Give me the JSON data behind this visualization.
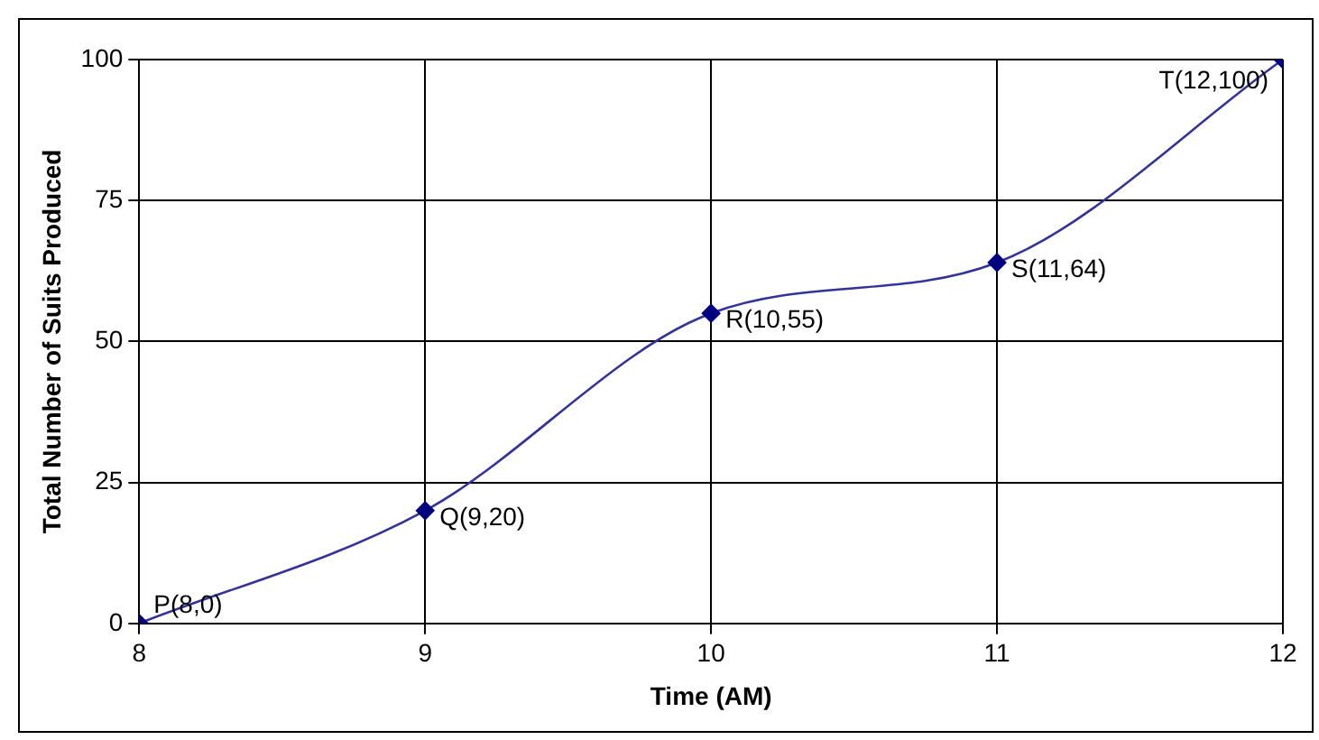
{
  "chart_data": {
    "type": "line",
    "xlabel": "Time (AM)",
    "ylabel": "Total Number of Suits Produced",
    "x": [
      8,
      9,
      10,
      11,
      12
    ],
    "series": [
      {
        "color": "#333399",
        "values": [
          0,
          20,
          55,
          64,
          100
        ]
      }
    ],
    "xlim": [
      8,
      12
    ],
    "xticks": [
      8,
      9,
      10,
      11,
      12
    ],
    "ylim": [
      0,
      100
    ],
    "yticks": [
      0,
      25,
      50,
      75,
      100
    ],
    "grid": true,
    "legend": false,
    "marker": "diamond",
    "line_style": "solid",
    "annotations": [
      {
        "text": "P(8,0)",
        "x": 8,
        "y": 0
      },
      {
        "text": "Q(9,20)",
        "x": 9,
        "y": 20
      },
      {
        "text": "R(10,55)",
        "x": 10,
        "y": 55
      },
      {
        "text": "S(11,64)",
        "x": 11,
        "y": 64
      },
      {
        "text": "T(12,100)",
        "x": 12,
        "y": 100
      }
    ]
  }
}
